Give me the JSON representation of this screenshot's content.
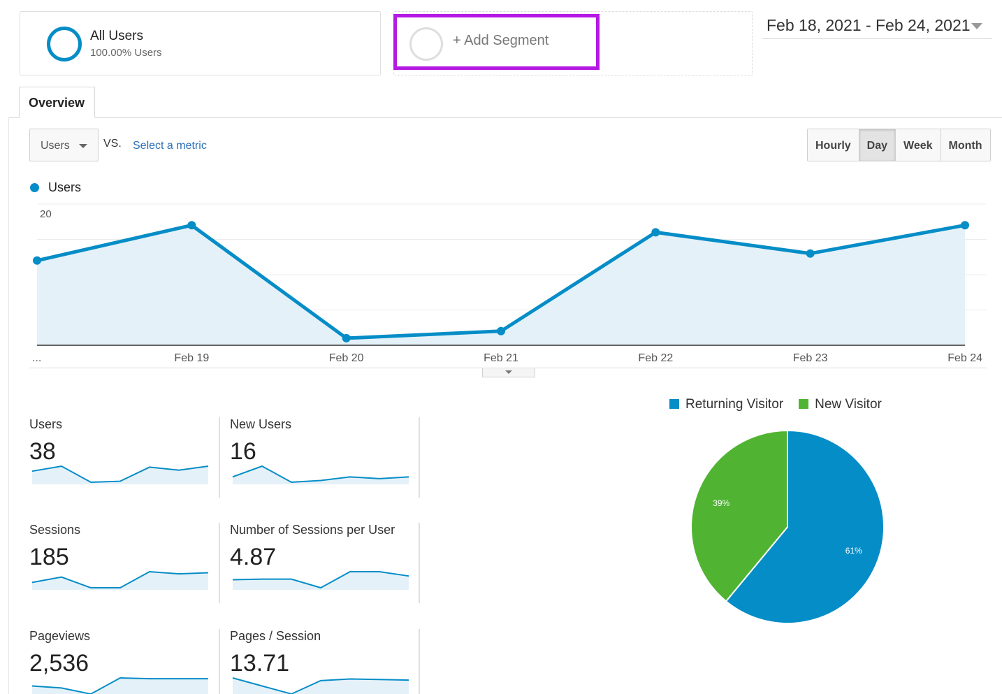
{
  "segments": {
    "all_users": {
      "title": "All Users",
      "subtitle": "100.00% Users"
    },
    "add_segment": {
      "label": "+ Add Segment"
    }
  },
  "date_range": {
    "label": "Feb 18, 2021 - Feb 24, 2021"
  },
  "tabs": {
    "overview": "Overview"
  },
  "controls": {
    "metric": "Users",
    "vs": "VS.",
    "select_metric": "Select a metric",
    "granularity": [
      "Hourly",
      "Day",
      "Week",
      "Month"
    ],
    "granularity_active": "Day"
  },
  "colors": {
    "primary": "#058dc7",
    "fill": "#e5f1f8",
    "green": "#50b432",
    "highlight": "#b519e4"
  },
  "chart_data": [
    {
      "type": "area",
      "series": [
        {
          "name": "Users",
          "values": [
            12,
            17,
            1,
            2,
            16,
            13,
            17
          ]
        }
      ],
      "x": [
        "...",
        "Feb 19",
        "Feb 20",
        "Feb 21",
        "Feb 22",
        "Feb 23",
        "Feb 24"
      ],
      "ylim": [
        0,
        20
      ],
      "yticks": [
        "20",
        "10"
      ],
      "grid": true
    },
    {
      "type": "pie",
      "categories": [
        "Returning Visitor",
        "New Visitor"
      ],
      "values": [
        61,
        39
      ],
      "labels": [
        "61%",
        "39%"
      ],
      "colors": [
        "#058dc7",
        "#50b432"
      ],
      "legend": "top"
    }
  ],
  "scorecards": [
    {
      "label": "Users",
      "value": "38",
      "spark": [
        12,
        17,
        1,
        2,
        16,
        13,
        17
      ]
    },
    {
      "label": "New Users",
      "value": "16",
      "spark": [
        4,
        10,
        1,
        2,
        4,
        3,
        4
      ]
    },
    {
      "label": "Sessions",
      "value": "185",
      "spark": [
        30,
        40,
        20,
        20,
        50,
        46,
        48
      ]
    },
    {
      "label": "Number of Sessions per User",
      "value": "4.87",
      "spark": [
        5.6,
        5.7,
        5.7,
        4.3,
        6.9,
        6.9,
        6.2
      ]
    },
    {
      "label": "Pageviews",
      "value": "2,536",
      "spark": [
        50,
        45,
        30,
        70,
        68,
        68,
        68
      ]
    },
    {
      "label": "Pages / Session",
      "value": "13.71",
      "spark": [
        60,
        45,
        30,
        55,
        58,
        57,
        56
      ]
    }
  ]
}
